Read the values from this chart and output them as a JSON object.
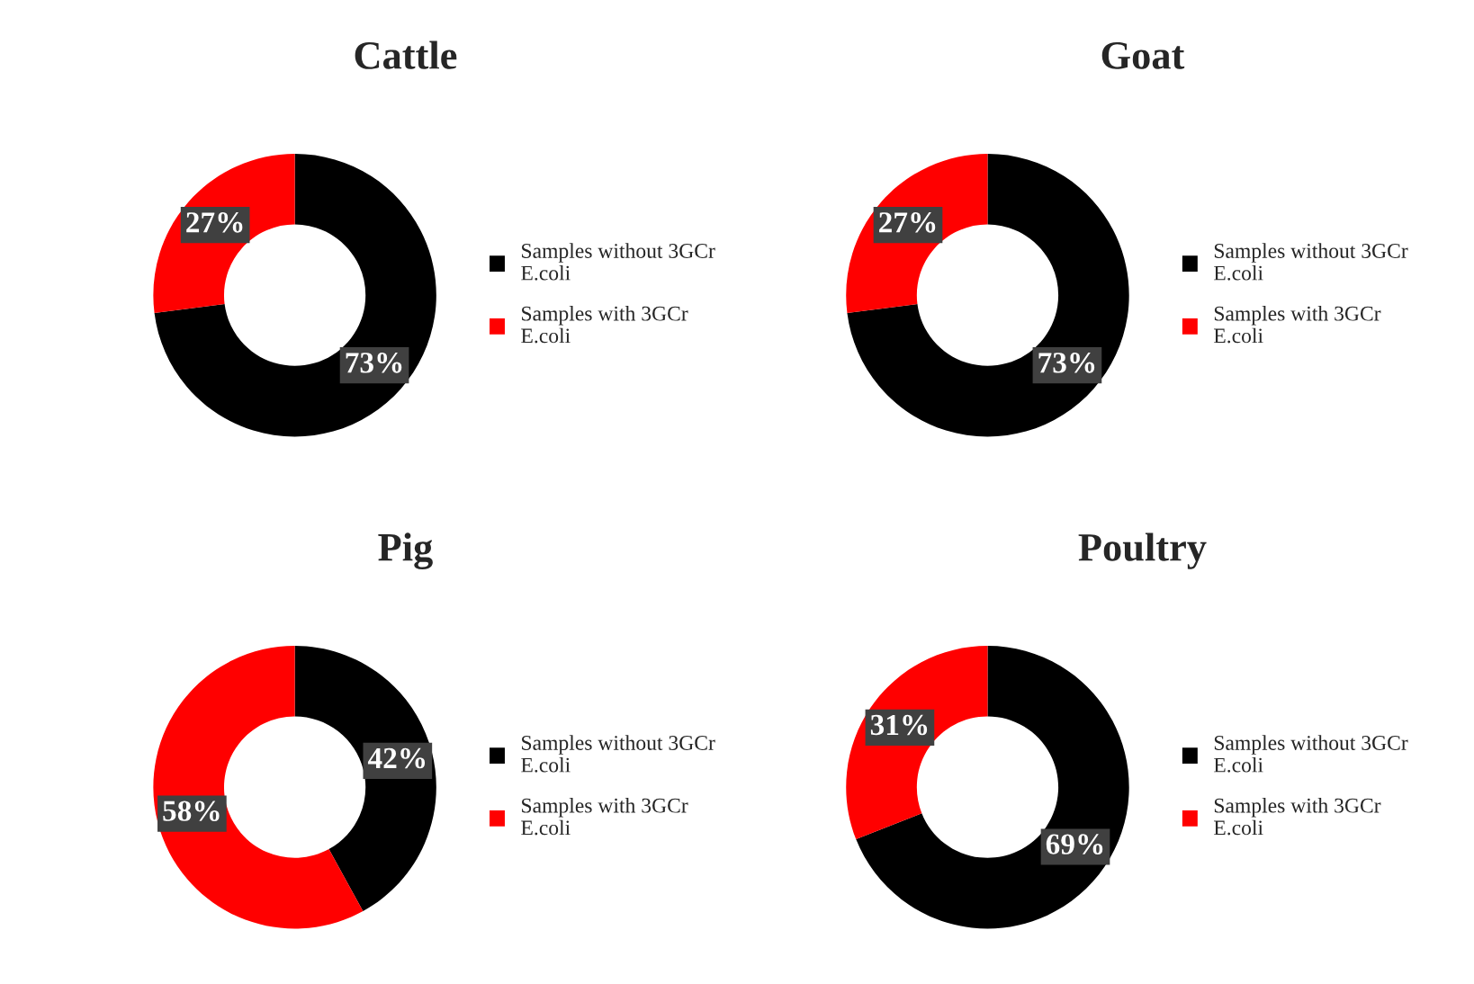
{
  "chart_data": [
    {
      "type": "donut",
      "title": "Cattle",
      "categories": [
        "Samples without 3GCr E.coli",
        "Samples with 3GCr E.coli"
      ],
      "values": [
        73,
        27
      ],
      "colors": [
        "#000000",
        "#ff0000"
      ],
      "value_labels": [
        "73%",
        "27%"
      ],
      "legend": "right"
    },
    {
      "type": "donut",
      "title": "Goat",
      "categories": [
        "Samples without 3GCr E.coli",
        "Samples with 3GCr E.coli"
      ],
      "values": [
        73,
        27
      ],
      "colors": [
        "#000000",
        "#ff0000"
      ],
      "value_labels": [
        "73%",
        "27%"
      ],
      "legend": "right"
    },
    {
      "type": "donut",
      "title": "Pig",
      "categories": [
        "Samples without 3GCr E.coli",
        "Samples with 3GCr E.coli"
      ],
      "values": [
        42,
        58
      ],
      "colors": [
        "#000000",
        "#ff0000"
      ],
      "value_labels": [
        "42%",
        "58%"
      ],
      "legend": "right"
    },
    {
      "type": "donut",
      "title": "Poultry",
      "categories": [
        "Samples without 3GCr E.coli",
        "Samples with 3GCr E.coli"
      ],
      "values": [
        69,
        31
      ],
      "colors": [
        "#000000",
        "#ff0000"
      ],
      "value_labels": [
        "69%",
        "31%"
      ],
      "legend": "right"
    }
  ]
}
